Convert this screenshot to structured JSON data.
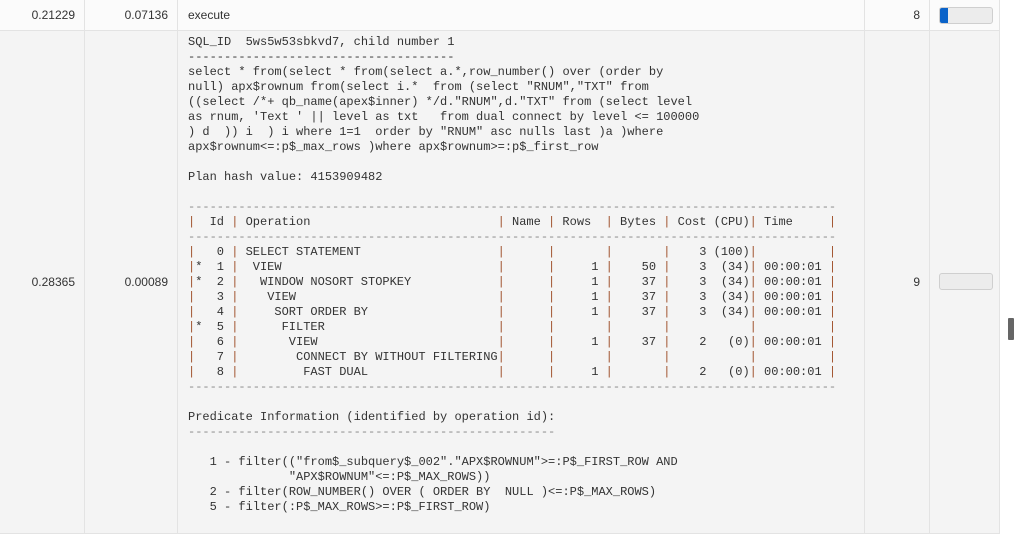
{
  "rows": [
    {
      "col1": "0.21229",
      "col2": "0.07136",
      "text": "execute",
      "count": "8",
      "progress": 0.15
    },
    {
      "col1": "0.28365",
      "col2": "0.00089",
      "count": "9",
      "progress": 0
    }
  ],
  "accent_color": "#0a63c9",
  "plan": {
    "header_lines": [
      "SQL_ID  5ws5w53sbkvd7, child number 1",
      "-------------------------------------",
      "select * from(select * from(select a.*,row_number() over (order by",
      "null) apx$rownum from(select i.*  from (select \"RNUM\",\"TXT\" from",
      "((select /*+ qb_name(apex$inner) */d.\"RNUM\",d.\"TXT\" from (select level",
      "as rnum, 'Text ' || level as txt   from dual connect by level <= 100000",
      ") d  )) i  ) i where 1=1  order by \"RNUM\" asc nulls last )a )where",
      "apx$rownum<=:p$_max_rows )where apx$rownum>=:p$_first_row",
      "",
      "Plan hash value: 4153909482",
      ""
    ],
    "separator": "------------------------------------------------------------------------------------------",
    "columns": {
      "id": "Id",
      "operation": "Operation",
      "name": "Name",
      "rows": "Rows",
      "bytes": "Bytes",
      "cost": "Cost (CPU)",
      "time": "Time"
    },
    "table": [
      {
        "star": "",
        "id": "0",
        "depth": 0,
        "operation": "SELECT STATEMENT",
        "name": "",
        "rows": "",
        "bytes": "",
        "cost": "3 (100)",
        "time": ""
      },
      {
        "star": "*",
        "id": "1",
        "depth": 1,
        "operation": "VIEW",
        "name": "",
        "rows": "1",
        "bytes": "50",
        "cost": "3  (34)",
        "time": "00:00:01"
      },
      {
        "star": "*",
        "id": "2",
        "depth": 2,
        "operation": "WINDOW NOSORT STOPKEY",
        "name": "",
        "rows": "1",
        "bytes": "37",
        "cost": "3  (34)",
        "time": "00:00:01"
      },
      {
        "star": "",
        "id": "3",
        "depth": 3,
        "operation": "VIEW",
        "name": "",
        "rows": "1",
        "bytes": "37",
        "cost": "3  (34)",
        "time": "00:00:01"
      },
      {
        "star": "",
        "id": "4",
        "depth": 4,
        "operation": "SORT ORDER BY",
        "name": "",
        "rows": "1",
        "bytes": "37",
        "cost": "3  (34)",
        "time": "00:00:01"
      },
      {
        "star": "*",
        "id": "5",
        "depth": 5,
        "operation": "FILTER",
        "name": "",
        "rows": "",
        "bytes": "",
        "cost": "",
        "time": ""
      },
      {
        "star": "",
        "id": "6",
        "depth": 6,
        "operation": "VIEW",
        "name": "",
        "rows": "1",
        "bytes": "37",
        "cost": "2   (0)",
        "time": "00:00:01"
      },
      {
        "star": "",
        "id": "7",
        "depth": 7,
        "operation": "CONNECT BY WITHOUT FILTERING",
        "name": "",
        "rows": "",
        "bytes": "",
        "cost": "",
        "time": ""
      },
      {
        "star": "",
        "id": "8",
        "depth": 8,
        "operation": "FAST DUAL",
        "name": "",
        "rows": "1",
        "bytes": "",
        "cost": "2   (0)",
        "time": "00:00:01"
      }
    ],
    "predicate_title": "Predicate Information (identified by operation id):",
    "predicate_separator": "---------------------------------------------------",
    "predicates": [
      "   1 - filter((\"from$_subquery$_002\".\"APX$ROWNUM\">=:P$_FIRST_ROW AND",
      "              \"APX$ROWNUM\"<=:P$_MAX_ROWS))",
      "   2 - filter(ROW_NUMBER() OVER ( ORDER BY  NULL )<=:P$_MAX_ROWS)",
      "   5 - filter(:P$_MAX_ROWS>=:P$_FIRST_ROW)"
    ]
  }
}
